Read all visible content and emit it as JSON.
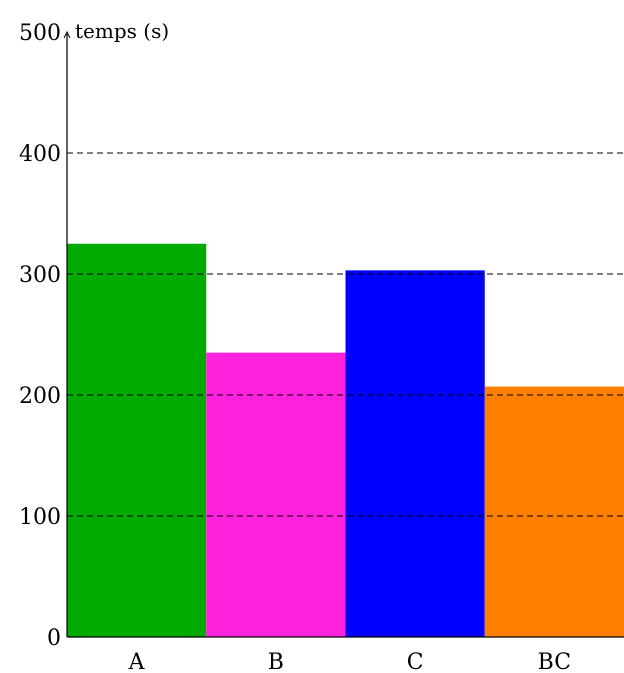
{
  "chart_data": {
    "type": "bar",
    "categories": [
      "A",
      "B",
      "C",
      "BC"
    ],
    "values": [
      325,
      235,
      303,
      207
    ],
    "colors": [
      "#00aa00",
      "#ff22dd",
      "#0000ff",
      "#ff8000"
    ],
    "title": "",
    "xlabel": "",
    "ylabel": "temps (s)",
    "ylim": [
      0,
      500
    ],
    "yticks": [
      0,
      100,
      200,
      300,
      400,
      500
    ],
    "grid": true,
    "grid_style": "dashed",
    "legend": "none"
  }
}
